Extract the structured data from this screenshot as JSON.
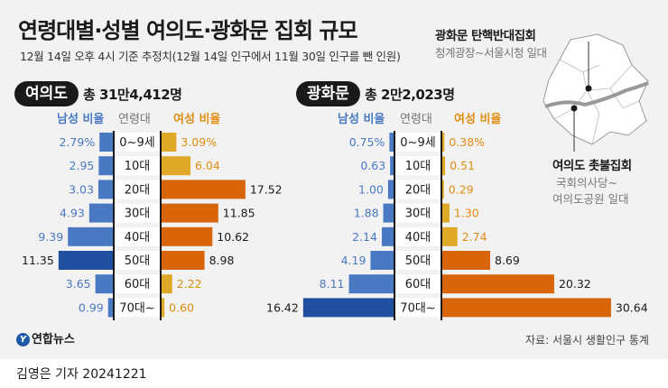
{
  "title": "연령대별·성별 여의도·광화문 집회 규모",
  "subtitle": "12월 14일 오후 4시 기준 추정치(12월 14일 인구에서 11월 30일 인구를 뺀 인원)",
  "colors": {
    "male_bar": "#4a79c4",
    "male_bar_dark": "#1f4f9e",
    "female_bar_light": "#e0a827",
    "female_bar_dark": "#d9650a",
    "male_text": "#4a79c4",
    "female_text": "#e08d12"
  },
  "headers": {
    "male": "남성 비율",
    "age": "연령대",
    "female": "여성 비율"
  },
  "map": {
    "gwanghwamun_title": "광화문 탄핵반대집회",
    "gwanghwamun_sub": "청계광장~서울시청 일대",
    "yeouido_title": "여의도 촛불집회",
    "yeouido_sub_line1": "국회의사당~",
    "yeouido_sub_line2": "여의도공원 일대"
  },
  "source": "자료: 서울시 생활인구 통계",
  "logo_text": "연합뉴스",
  "credit": "김영은 기자  20241221",
  "chart_data": [
    {
      "type": "bar",
      "location": "여의도",
      "total": "총 31만4,412명",
      "categories": [
        "0~9세",
        "10대",
        "20대",
        "30대",
        "40대",
        "50대",
        "60대",
        "70대~"
      ],
      "series": [
        {
          "name": "남성 비율",
          "values": [
            2.79,
            2.95,
            3.03,
            4.93,
            9.39,
            11.35,
            3.65,
            0.99
          ],
          "labels": [
            "2.79%",
            "2.95",
            "3.03",
            "4.93",
            "9.39",
            "11.35",
            "3.65",
            "0.99"
          ]
        },
        {
          "name": "여성 비율",
          "values": [
            3.09,
            6.04,
            17.52,
            11.85,
            10.62,
            8.98,
            2.22,
            0.6
          ],
          "labels": [
            "3.09%",
            "6.04",
            "17.52",
            "11.85",
            "10.62",
            "8.98",
            "2.22",
            "0.60"
          ]
        }
      ],
      "unit": "%"
    },
    {
      "type": "bar",
      "location": "광화문",
      "total": "총 2만2,023명",
      "categories": [
        "0~9세",
        "10대",
        "20대",
        "30대",
        "40대",
        "50대",
        "60대",
        "70대~"
      ],
      "series": [
        {
          "name": "남성 비율",
          "values": [
            0.75,
            0.63,
            1.0,
            1.88,
            2.14,
            4.19,
            8.11,
            16.42
          ],
          "labels": [
            "0.75%",
            "0.63",
            "1.00",
            "1.88",
            "2.14",
            "4.19",
            "8.11",
            "16.42"
          ]
        },
        {
          "name": "여성 비율",
          "values": [
            0.38,
            0.51,
            0.29,
            1.3,
            2.74,
            8.69,
            20.32,
            30.64
          ],
          "labels": [
            "0.38%",
            "0.51",
            "0.29",
            "1.30",
            "2.74",
            "8.69",
            "20.32",
            "30.64"
          ]
        }
      ],
      "unit": "%"
    }
  ]
}
